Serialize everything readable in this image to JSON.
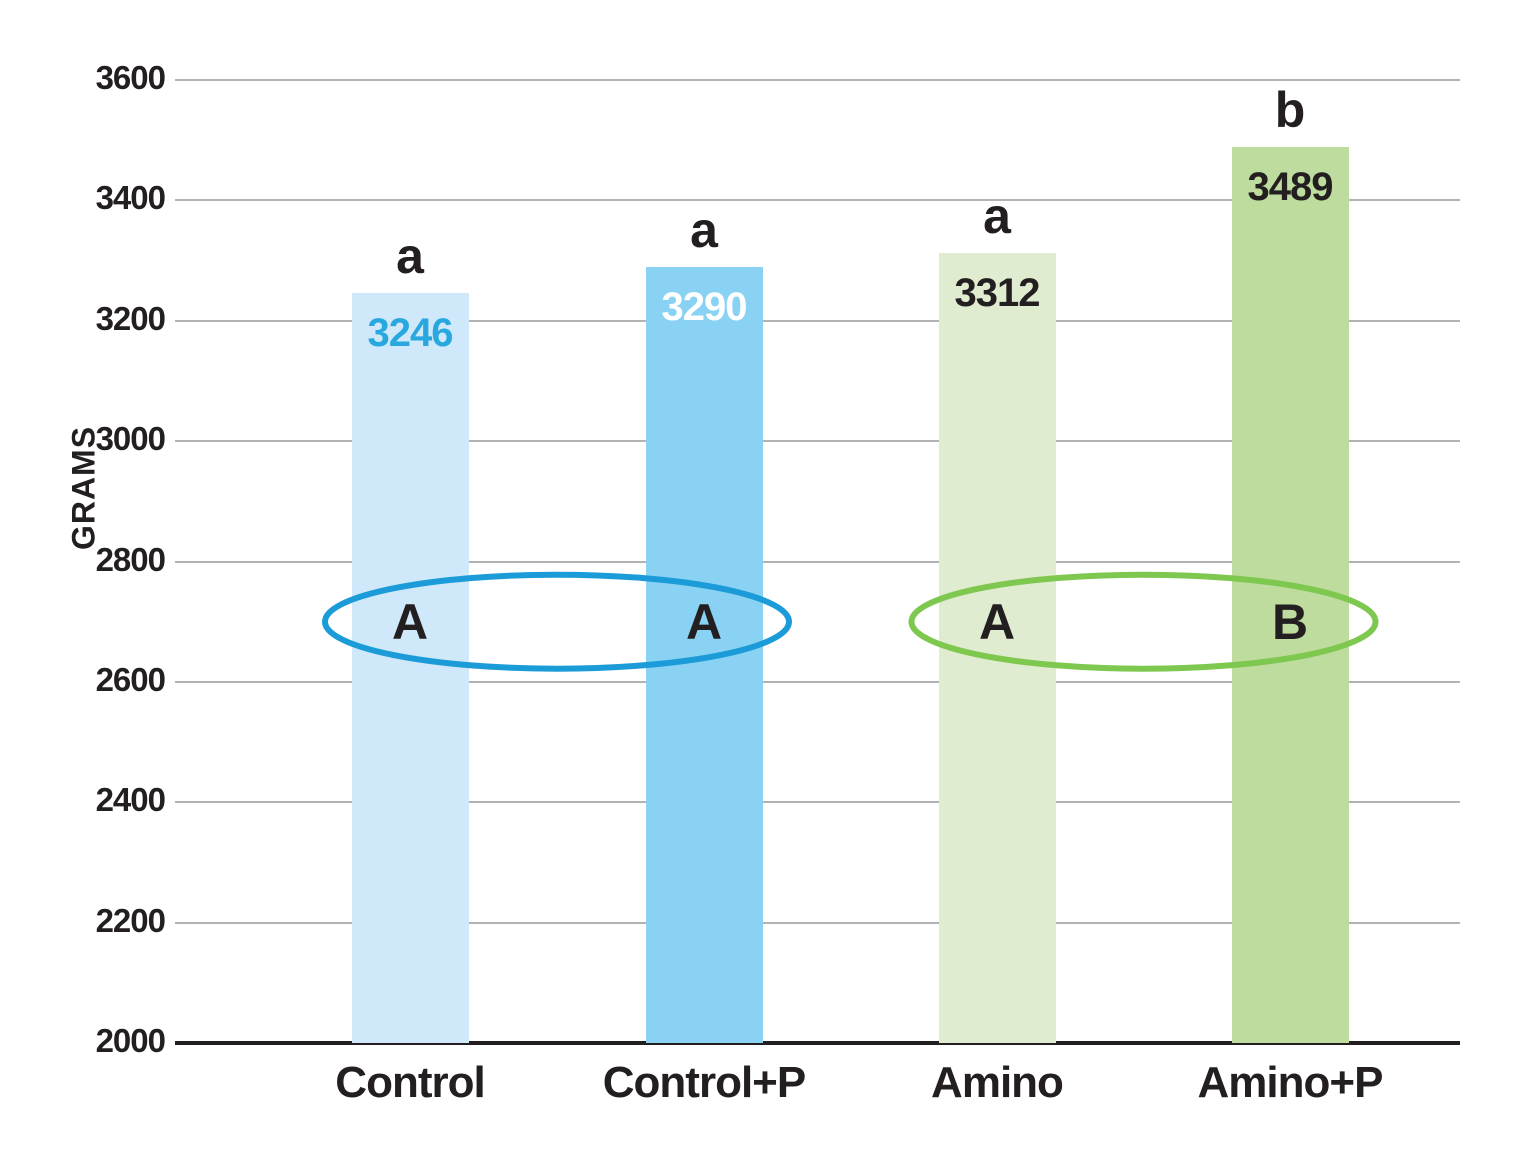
{
  "chart_data": {
    "type": "bar",
    "title": "",
    "xlabel": "",
    "ylabel": "GRAMS",
    "ylim": [
      2000,
      3600
    ],
    "ytick_step": 200,
    "grid": true,
    "legend": "none",
    "categories": [
      "Control",
      "Control+P",
      "Amino",
      "Amino+P"
    ],
    "values": [
      3246,
      3290,
      3312,
      3489
    ],
    "bar_colors": [
      "#cfe8fa",
      "#8ad2f4",
      "#dfeccf",
      "#bddc9e"
    ],
    "value_label_colors": [
      "#29a8e0",
      "#ffffff",
      "#231f20",
      "#231f20"
    ],
    "significance_letters": [
      "a",
      "a",
      "a",
      "b"
    ],
    "group_ellipses": [
      {
        "bars": [
          0,
          1
        ],
        "letters": [
          "A",
          "A"
        ],
        "stroke_color": "#1b9cd8"
      },
      {
        "bars": [
          2,
          3
        ],
        "letters": [
          "A",
          "B"
        ],
        "stroke_color": "#7ec850"
      }
    ],
    "colors": {
      "axis_text": "#231f20",
      "gridline": "#b1b3b5",
      "baseline": "#231f20"
    }
  }
}
